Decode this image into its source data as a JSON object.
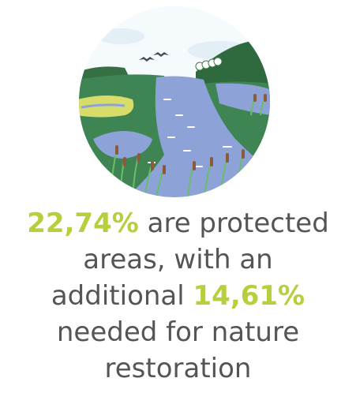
{
  "illustration": {
    "icon": "wetland-landscape-icon",
    "colors": {
      "sky": "#f6fbfd",
      "hill_dark": "#3d7a47",
      "water": "#8da3d8",
      "grass": "#3f8553",
      "field": "#d8dd6a",
      "reed_leaf": "#6abd68",
      "reed_head": "#8a5a3a",
      "bird": "#4a4a5a"
    }
  },
  "stat": {
    "protected_value": "22,74%",
    "protected_suffix": "are protected",
    "line2": "areas, with an",
    "additional_prefix": "additional",
    "additional_value": "14,61%",
    "line4": "needed for nature",
    "line5": "restoration"
  },
  "colors": {
    "highlight": "#b7cf3c",
    "text": "#555555"
  }
}
